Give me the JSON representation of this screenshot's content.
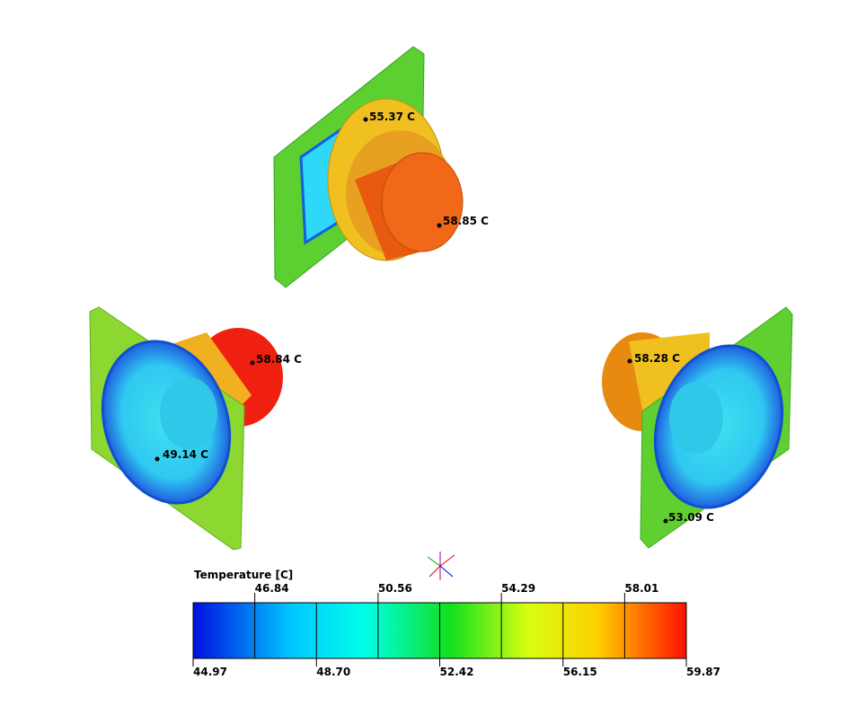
{
  "probes": [
    "55.37 C",
    "58.85 C",
    "58.84 C",
    "49.14 C",
    "58.28 C",
    "53.09 C"
  ],
  "colorbar": {
    "title": "Temperature [C]",
    "ticks": [
      "44.97",
      "46.84",
      "48.70",
      "50.56",
      "52.42",
      "54.29",
      "56.15",
      "58.01",
      "59.87"
    ]
  }
}
